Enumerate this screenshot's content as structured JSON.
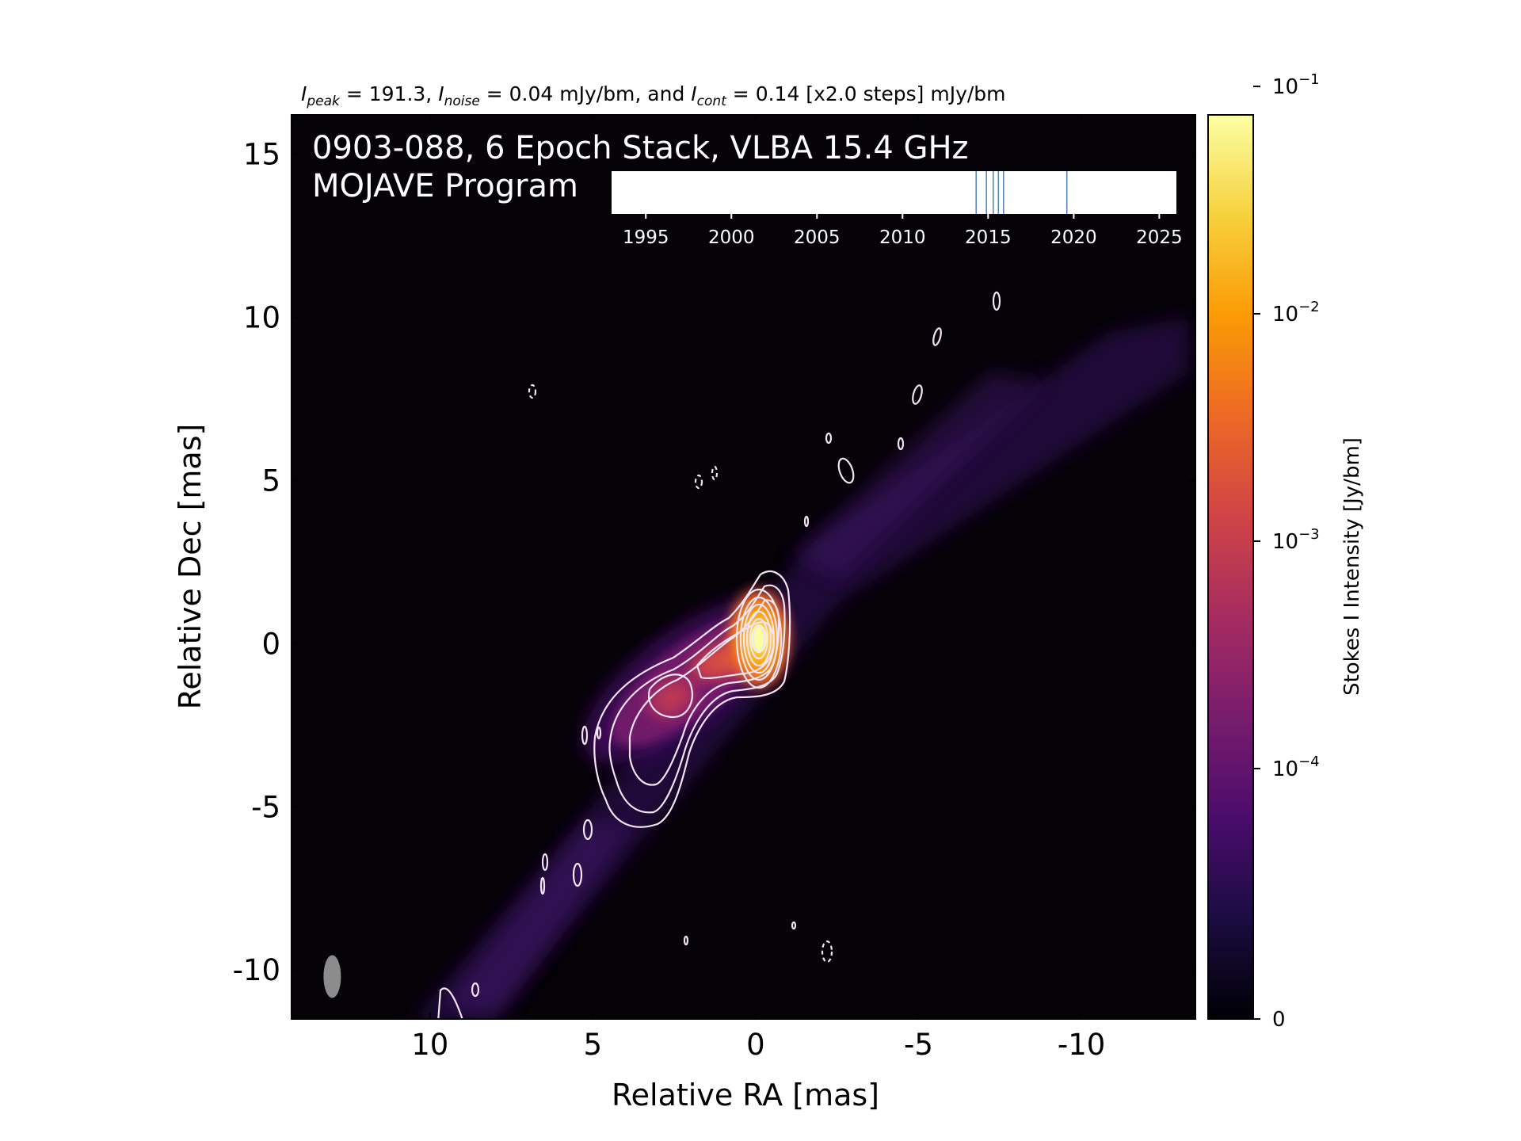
{
  "chart_data": {
    "type": "heatmap",
    "header": {
      "prefix": "I",
      "peak_sub": "peak",
      "peak_text": " = 191.3, ",
      "noise_sub": "noise",
      "noise_text": " = 0.04 mJy/bm, and ",
      "cont_sub": "cont",
      "cont_text": " = 0.14 [x2.0 steps] mJy/bm"
    },
    "title_line1": "0903-088, 6 Epoch Stack, VLBA 15.4 GHz",
    "title_line2": "MOJAVE Program",
    "xlabel": "Relative RA [mas]",
    "ylabel": "Relative Dec [mas]",
    "xlim": [
      14.25,
      -13.5
    ],
    "ylim": [
      -11.5,
      16.2
    ],
    "xticks": [
      10,
      5,
      0,
      -5,
      -10
    ],
    "xtick_labels": [
      "10",
      "5",
      "0",
      "-5",
      "-10"
    ],
    "yticks": [
      15,
      10,
      5,
      0,
      -5,
      -10
    ],
    "ytick_labels": [
      "15",
      "10",
      "5",
      "0",
      "-5",
      "-10"
    ],
    "colorbar": {
      "label": "Stokes I Intensity [Jy/bm]",
      "scale": "log",
      "tick_values": [
        0,
        0.0001,
        0.001,
        0.01,
        0.1
      ],
      "tick_labels": [
        {
          "base": "0",
          "exp": ""
        },
        {
          "base": "10",
          "exp": "−4"
        },
        {
          "base": "10",
          "exp": "−3"
        },
        {
          "base": "10",
          "exp": "−2"
        },
        {
          "base": "10",
          "exp": "−1"
        }
      ],
      "colors": [
        "#000004",
        "#1b0c41",
        "#4a0c6b",
        "#781c6d",
        "#a52c60",
        "#cf4446",
        "#ed6925",
        "#fb9b06",
        "#f7d13d",
        "#fcffa4"
      ]
    },
    "core": {
      "ra": 0.0,
      "dec": 0.0,
      "peak_mJy_per_bm": 191.3
    },
    "beam": {
      "ra": 13.0,
      "dec": -10.2
    },
    "epoch_inset": {
      "xlim": [
        1993,
        2026
      ],
      "ticks": [
        1995,
        2000,
        2005,
        2010,
        2015,
        2020,
        2025
      ],
      "tick_labels": [
        "1995",
        "2000",
        "2005",
        "2010",
        "2015",
        "2020",
        "2025"
      ],
      "epochs": [
        2014.3,
        2014.9,
        2015.3,
        2015.6,
        2015.9,
        2019.6
      ]
    },
    "colors": {
      "contour": "#f3e4f4",
      "epoch_line": "#4f83b9",
      "frame": "#000000"
    }
  }
}
